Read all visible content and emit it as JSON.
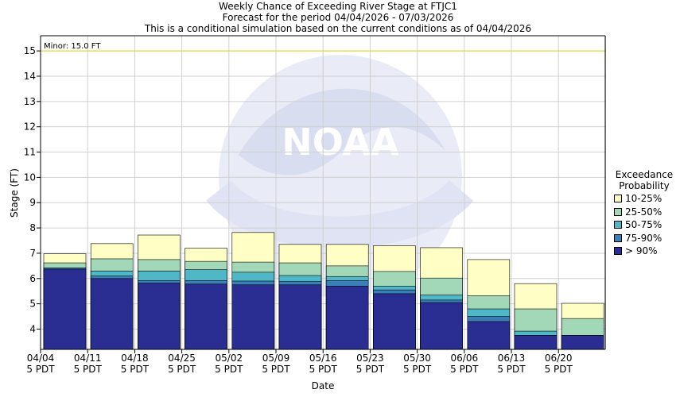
{
  "header": {
    "title": "Weekly Chance of Exceeding River Stage at FTJC1",
    "subtitle1": "Forecast for the period 04/04/2026 - 07/03/2026",
    "subtitle2": "This is a conditional simulation based on the current conditions as of 04/04/2026"
  },
  "legend": {
    "title_line1": "Exceedance",
    "title_line2": "Probability"
  },
  "chart_data": {
    "type": "bar",
    "title": "Weekly Chance of Exceeding River Stage at FTJC1",
    "xlabel": "Date",
    "ylabel": "Stage (FT)",
    "ylim": [
      3.2,
      15.6
    ],
    "yticks": [
      4,
      5,
      6,
      7,
      8,
      9,
      10,
      11,
      12,
      13,
      14,
      15
    ],
    "grid": true,
    "legend_position": "right",
    "threshold": {
      "label": "Minor: 15.0 FT",
      "value": 15.0,
      "color": "#dede33"
    },
    "categories": [
      "04/04 5 PDT",
      "04/11 5 PDT",
      "04/18 5 PDT",
      "04/25 5 PDT",
      "05/02 5 PDT",
      "05/09 5 PDT",
      "05/16 5 PDT",
      "05/23 5 PDT",
      "05/30 5 PDT",
      "06/06 5 PDT",
      "06/13 5 PDT",
      "06/20 5 PDT"
    ],
    "tick_labels": [
      [
        "04/04",
        "5 PDT"
      ],
      [
        "04/11",
        "5 PDT"
      ],
      [
        "04/18",
        "5 PDT"
      ],
      [
        "04/25",
        "5 PDT"
      ],
      [
        "05/02",
        "5 PDT"
      ],
      [
        "05/09",
        "5 PDT"
      ],
      [
        "05/16",
        "5 PDT"
      ],
      [
        "05/23",
        "5 PDT"
      ],
      [
        "05/30",
        "5 PDT"
      ],
      [
        "06/06",
        "5 PDT"
      ],
      [
        "06/13",
        "5 PDT"
      ],
      [
        "06/20",
        "5 PDT"
      ]
    ],
    "series": [
      {
        "name": "> 90%",
        "color": "#2a2e92",
        "values": [
          6.37,
          6.0,
          5.82,
          5.78,
          5.75,
          5.75,
          5.7,
          5.4,
          5.05,
          4.3,
          3.75,
          3.75
        ]
      },
      {
        "name": "75-90%",
        "color": "#3a7fb8",
        "values": [
          6.42,
          6.1,
          5.92,
          5.92,
          5.9,
          5.88,
          5.92,
          5.55,
          5.15,
          4.5,
          3.75,
          3.75
        ]
      },
      {
        "name": "50-75%",
        "color": "#4fb7c5",
        "values": [
          6.42,
          6.3,
          6.3,
          6.35,
          6.25,
          6.12,
          6.08,
          5.7,
          5.35,
          4.8,
          3.92,
          3.75
        ]
      },
      {
        "name": "25-50%",
        "color": "#a2d8b8",
        "values": [
          6.62,
          6.78,
          6.75,
          6.68,
          6.65,
          6.62,
          6.5,
          6.28,
          6.02,
          5.32,
          4.8,
          4.42
        ]
      },
      {
        "name": "10-25%",
        "color": "#ffffc5",
        "values": [
          6.98,
          7.38,
          7.72,
          7.2,
          7.82,
          7.35,
          7.35,
          7.3,
          7.22,
          6.75,
          5.8,
          5.02
        ]
      }
    ]
  }
}
